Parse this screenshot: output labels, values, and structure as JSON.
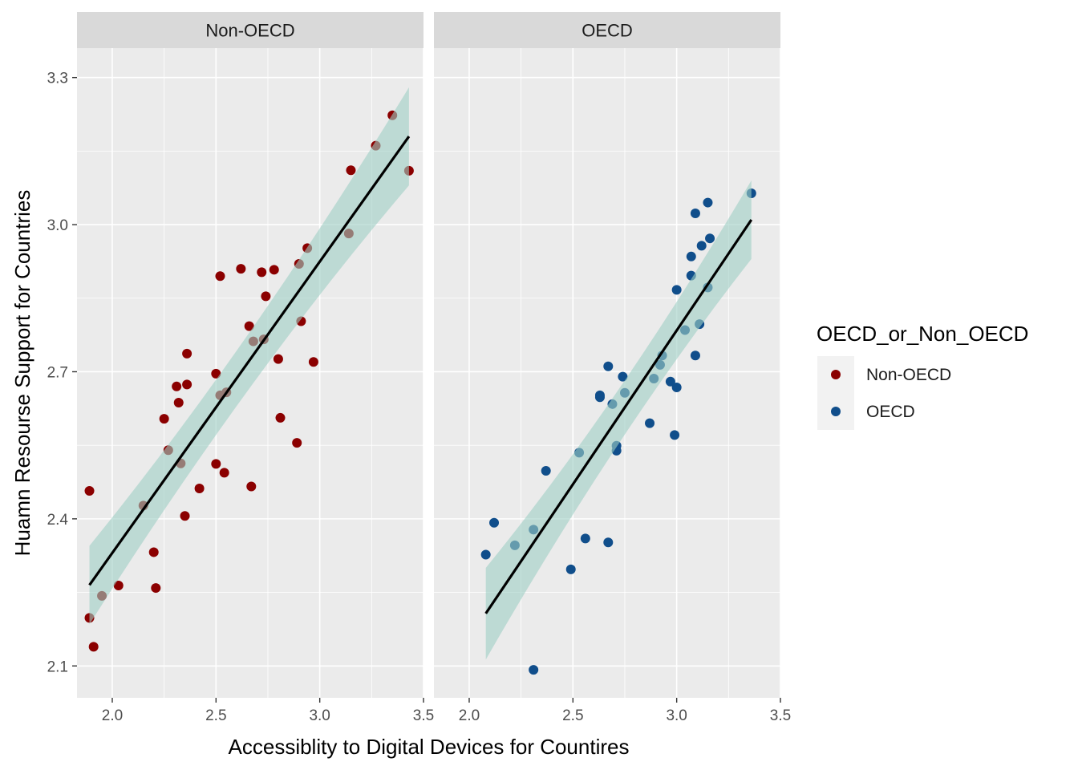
{
  "chart_data": {
    "type": "scatter",
    "facet_variable": "OECD_or_Non_OECD",
    "xlabel": "Accessiblity to Digital Devices for Countires",
    "ylabel": "Huamn Resourse Support for Countries",
    "xlim": [
      1.83,
      3.5
    ],
    "ylim": [
      2.035,
      3.36
    ],
    "x_ticks": [
      2.0,
      2.5,
      3.0,
      3.5
    ],
    "x_tick_labels": [
      "2.0",
      "2.5",
      "3.0",
      "3.5"
    ],
    "y_ticks": [
      2.1,
      2.4,
      2.7,
      3.0,
      3.3
    ],
    "y_tick_labels": [
      "2.1",
      "2.4",
      "2.7",
      "3.0",
      "3.3"
    ],
    "grid": true,
    "legend": {
      "title": "OECD_or_Non_OECD",
      "position": "right",
      "entries": [
        {
          "label": "Non-OECD",
          "color": "#8B0000"
        },
        {
          "label": "OECD",
          "color": "#104E8B"
        }
      ]
    },
    "fit": {
      "method": "linear regression",
      "line_color": "#000000",
      "band_color": "#9ECFC4"
    },
    "panels": [
      {
        "strip_label": "Non-OECD",
        "color": "#8B0000",
        "fit": {
          "x": [
            1.89,
            3.43
          ],
          "y": [
            2.265,
            3.18
          ],
          "ci_lower": [
            2.185,
            3.08
          ],
          "ci_upper": [
            2.345,
            3.28
          ]
        },
        "points": [
          [
            1.89,
            2.457
          ],
          [
            1.89,
            2.198
          ],
          [
            1.91,
            2.139
          ],
          [
            1.95,
            2.243
          ],
          [
            2.03,
            2.264
          ],
          [
            2.15,
            2.427
          ],
          [
            2.2,
            2.332
          ],
          [
            2.21,
            2.259
          ],
          [
            2.25,
            2.604
          ],
          [
            2.27,
            2.54
          ],
          [
            2.31,
            2.67
          ],
          [
            2.32,
            2.637
          ],
          [
            2.33,
            2.513
          ],
          [
            2.35,
            2.406
          ],
          [
            2.36,
            2.737
          ],
          [
            2.36,
            2.674
          ],
          [
            2.42,
            2.462
          ],
          [
            2.5,
            2.696
          ],
          [
            2.5,
            2.512
          ],
          [
            2.52,
            2.895
          ],
          [
            2.52,
            2.652
          ],
          [
            2.54,
            2.494
          ],
          [
            2.55,
            2.658
          ],
          [
            2.62,
            2.91
          ],
          [
            2.66,
            2.793
          ],
          [
            2.67,
            2.466
          ],
          [
            2.68,
            2.762
          ],
          [
            2.72,
            2.903
          ],
          [
            2.73,
            2.766
          ],
          [
            2.74,
            2.854
          ],
          [
            2.78,
            2.908
          ],
          [
            2.8,
            2.726
          ],
          [
            2.81,
            2.606
          ],
          [
            2.89,
            2.555
          ],
          [
            2.9,
            2.92
          ],
          [
            2.91,
            2.803
          ],
          [
            2.94,
            2.952
          ],
          [
            2.97,
            2.72
          ],
          [
            3.14,
            2.982
          ],
          [
            3.15,
            3.111
          ],
          [
            3.27,
            3.161
          ],
          [
            3.35,
            3.223
          ],
          [
            3.43,
            3.11
          ]
        ]
      },
      {
        "strip_label": "OECD",
        "color": "#104E8B",
        "fit": {
          "x": [
            2.08,
            3.36
          ],
          "y": [
            2.207,
            3.01
          ],
          "ci_lower": [
            2.113,
            2.93
          ],
          "ci_upper": [
            2.3,
            3.09
          ]
        },
        "points": [
          [
            2.08,
            2.327
          ],
          [
            2.12,
            2.392
          ],
          [
            2.22,
            2.346
          ],
          [
            2.31,
            2.092
          ],
          [
            2.31,
            2.378
          ],
          [
            2.37,
            2.498
          ],
          [
            2.49,
            2.297
          ],
          [
            2.53,
            2.535
          ],
          [
            2.56,
            2.36
          ],
          [
            2.63,
            2.652
          ],
          [
            2.63,
            2.648
          ],
          [
            2.67,
            2.711
          ],
          [
            2.67,
            2.352
          ],
          [
            2.69,
            2.634
          ],
          [
            2.71,
            2.539
          ],
          [
            2.71,
            2.549
          ],
          [
            2.74,
            2.69
          ],
          [
            2.75,
            2.657
          ],
          [
            2.87,
            2.595
          ],
          [
            2.89,
            2.686
          ],
          [
            2.92,
            2.714
          ],
          [
            2.93,
            2.733
          ],
          [
            2.97,
            2.68
          ],
          [
            2.99,
            2.571
          ],
          [
            3.0,
            2.668
          ],
          [
            3.0,
            2.867
          ],
          [
            3.04,
            2.785
          ],
          [
            3.07,
            2.935
          ],
          [
            3.07,
            2.896
          ],
          [
            3.09,
            2.733
          ],
          [
            3.09,
            3.023
          ],
          [
            3.11,
            2.797
          ],
          [
            3.12,
            2.957
          ],
          [
            3.15,
            2.872
          ],
          [
            3.15,
            3.045
          ],
          [
            3.16,
            2.972
          ],
          [
            3.36,
            3.064
          ]
        ]
      }
    ]
  }
}
